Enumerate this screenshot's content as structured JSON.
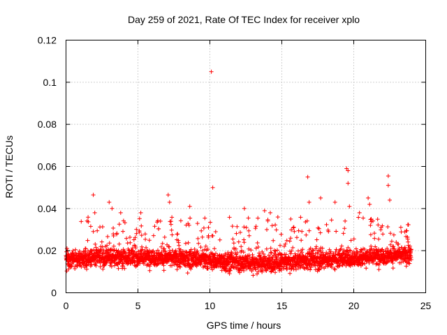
{
  "chart_data": {
    "type": "scatter",
    "title": "Day 259 of 2021, Rate Of TEC Index for receiver xplo",
    "xlabel": "GPS time / hours",
    "ylabel": "ROTI / TECUs",
    "xlim": [
      0,
      25
    ],
    "ylim": [
      0,
      0.12
    ],
    "xticks": [
      0,
      5,
      10,
      15,
      20,
      25
    ],
    "xtick_labels": [
      "0",
      "5",
      "10",
      "15",
      "20",
      "25"
    ],
    "yticks": [
      0,
      0.02,
      0.04,
      0.06,
      0.08,
      0.1,
      0.12
    ],
    "ytick_labels": [
      "0",
      "0.02",
      "0.04",
      "0.06",
      "0.08",
      "0.1",
      "0.12"
    ],
    "grid": true,
    "marker": "+",
    "color": "#ff0000",
    "x_range_of_data": [
      0,
      24
    ],
    "typical_y_range": [
      0.005,
      0.028
    ],
    "outliers": [
      {
        "x": 1.9,
        "y": 0.0465
      },
      {
        "x": 2.0,
        "y": 0.038
      },
      {
        "x": 3.0,
        "y": 0.043
      },
      {
        "x": 3.2,
        "y": 0.04
      },
      {
        "x": 3.8,
        "y": 0.038
      },
      {
        "x": 5.2,
        "y": 0.038
      },
      {
        "x": 7.1,
        "y": 0.0465
      },
      {
        "x": 7.2,
        "y": 0.043
      },
      {
        "x": 8.6,
        "y": 0.041
      },
      {
        "x": 10.1,
        "y": 0.105
      },
      {
        "x": 10.2,
        "y": 0.05
      },
      {
        "x": 12.4,
        "y": 0.04
      },
      {
        "x": 13.8,
        "y": 0.039
      },
      {
        "x": 14.2,
        "y": 0.038
      },
      {
        "x": 16.8,
        "y": 0.055
      },
      {
        "x": 16.9,
        "y": 0.043
      },
      {
        "x": 17.7,
        "y": 0.045
      },
      {
        "x": 18.7,
        "y": 0.043
      },
      {
        "x": 19.5,
        "y": 0.059
      },
      {
        "x": 19.6,
        "y": 0.058
      },
      {
        "x": 19.6,
        "y": 0.052
      },
      {
        "x": 19.7,
        "y": 0.041
      },
      {
        "x": 20.4,
        "y": 0.038
      },
      {
        "x": 21.0,
        "y": 0.045
      },
      {
        "x": 21.1,
        "y": 0.042
      },
      {
        "x": 22.4,
        "y": 0.0555
      },
      {
        "x": 22.4,
        "y": 0.051
      },
      {
        "x": 22.5,
        "y": 0.044
      }
    ]
  }
}
